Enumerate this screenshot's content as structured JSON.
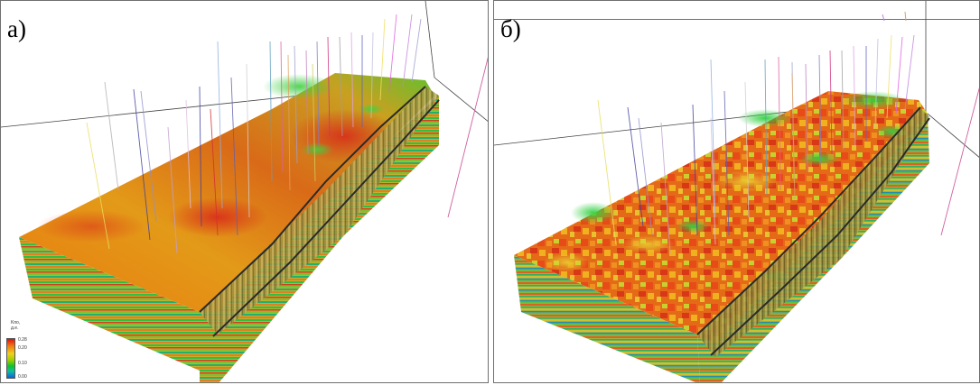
{
  "panels": [
    {
      "id": "a",
      "label": "а)"
    },
    {
      "id": "b",
      "label": "б)"
    }
  ],
  "legend": {
    "title_line1": "Kпо,",
    "title_line2": "д.е.",
    "ticks": [
      "0.28",
      "0.20",
      "0.10",
      "0.00"
    ]
  },
  "colors": {
    "porosity_high": "#e01010",
    "porosity_mid": "#f0d020",
    "porosity_low": "#10c030",
    "porosity_min": "#1060e0"
  }
}
